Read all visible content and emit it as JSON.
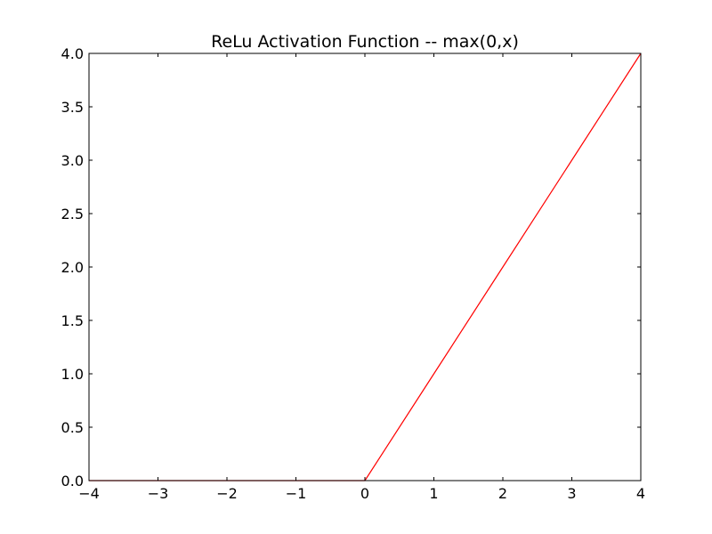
{
  "chart_data": {
    "type": "line",
    "title": "ReLu Activation Function -- max(0,x)",
    "xlabel": "",
    "ylabel": "",
    "xlim": [
      -4,
      4
    ],
    "ylim": [
      0.0,
      4.0
    ],
    "x_ticks": [
      "−4",
      "−3",
      "−2",
      "−1",
      "0",
      "1",
      "2",
      "3",
      "4"
    ],
    "x_tick_values": [
      -4,
      -3,
      -2,
      -1,
      0,
      1,
      2,
      3,
      4
    ],
    "y_ticks": [
      "0.0",
      "0.5",
      "1.0",
      "1.5",
      "2.0",
      "2.5",
      "3.0",
      "3.5",
      "4.0"
    ],
    "y_tick_values": [
      0.0,
      0.5,
      1.0,
      1.5,
      2.0,
      2.5,
      3.0,
      3.5,
      4.0
    ],
    "grid": false,
    "series": [
      {
        "color": "#ff0000",
        "x": [
          -4,
          -3,
          -2,
          -1,
          0,
          1,
          2,
          3,
          4
        ],
        "y": [
          0,
          0,
          0,
          0,
          0,
          1,
          2,
          3,
          4
        ]
      }
    ]
  }
}
